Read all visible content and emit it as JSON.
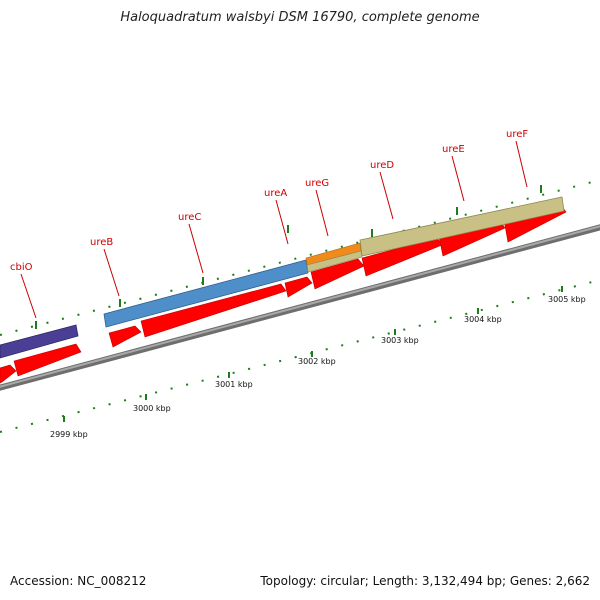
{
  "title": "Haloquadratum walsbyi DSM 16790, complete genome",
  "accession_text": "Accession: NC_008212",
  "summary_text": "Topology: circular; Length: 3,132,494 bp; Genes: 2,662",
  "colors": {
    "backbone": "#8c8c8c",
    "gene_arrow": "#ff0000",
    "tick": "#1e7b1e",
    "label": "#cc0000",
    "cbiO_bar": "#4a3f95",
    "ureB_ureC_ureA_bar": "#4f8fc9",
    "ureG_bar": "#f08a1a",
    "ureD_ureE_ureF_bar": "#c9c085"
  },
  "gene_labels": [
    "cbiO",
    "ureB",
    "ureC",
    "ureA",
    "ureG",
    "ureD",
    "ureE",
    "ureF"
  ],
  "kbp_labels": [
    "2999 kbp",
    "3000 kbp",
    "3001 kbp",
    "3002 kbp",
    "3003 kbp",
    "3004 kbp",
    "3005 kbp"
  ]
}
